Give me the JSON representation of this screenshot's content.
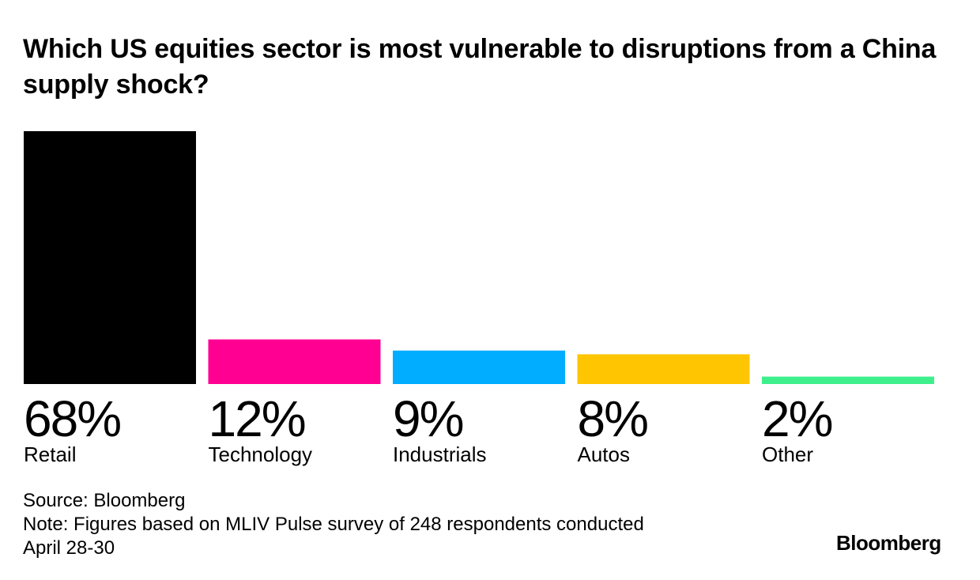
{
  "title": "Which US equities sector is most vulnerable to disruptions from a China supply shock?",
  "chart_data": {
    "type": "bar",
    "title": "Which US equities sector is most vulnerable to disruptions from a China supply shock?",
    "categories": [
      "Retail",
      "Technology",
      "Industrials",
      "Autos",
      "Other"
    ],
    "values": [
      68,
      12,
      9,
      8,
      2
    ],
    "value_labels": [
      "68%",
      "12%",
      "9%",
      "8%",
      "2%"
    ],
    "colors": [
      "#000000",
      "#ff0093",
      "#00adff",
      "#ffc500",
      "#3fef8c"
    ],
    "xlabel": "",
    "ylabel": "",
    "ylim": [
      0,
      68
    ],
    "grid": false
  },
  "footer": {
    "source": "Source: Bloomberg",
    "note_line1": "Note: Figures based on MLIV Pulse survey of 248 respondents conducted",
    "note_line2": "April 28-30"
  },
  "brand": "Bloomberg"
}
